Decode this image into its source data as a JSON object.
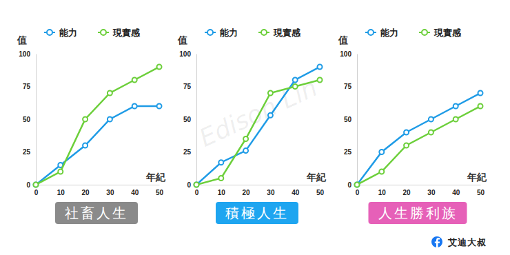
{
  "chart_data": [
    {
      "type": "line",
      "title": "社畜人生",
      "color": "#8a8a8a",
      "x_label": "年紀",
      "y_label": "值",
      "x": [
        0,
        10,
        20,
        30,
        40,
        50
      ],
      "xlim": [
        0,
        50
      ],
      "xticks": [
        0,
        10,
        20,
        30,
        40,
        50
      ],
      "ylim": [
        0,
        100
      ],
      "yticks": [
        0,
        25,
        50,
        75,
        100
      ],
      "grid": false,
      "legend": "top",
      "marker": "circle",
      "series": [
        {
          "name": "能力",
          "color": "#1e9be6",
          "values": [
            0,
            15,
            30,
            50,
            60,
            60
          ]
        },
        {
          "name": "現實感",
          "color": "#6ccf3a",
          "values": [
            0,
            10,
            50,
            70,
            80,
            90
          ]
        }
      ]
    },
    {
      "type": "line",
      "title": "積極人生",
      "color": "#1ea5f0",
      "x_label": "年紀",
      "y_label": "值",
      "x": [
        0,
        10,
        20,
        30,
        40,
        50
      ],
      "xlim": [
        0,
        50
      ],
      "xticks": [
        0,
        10,
        20,
        30,
        40,
        50
      ],
      "ylim": [
        0,
        100
      ],
      "yticks": [
        0,
        25,
        50,
        75,
        100
      ],
      "grid": false,
      "legend": "top",
      "marker": "circle",
      "series": [
        {
          "name": "能力",
          "color": "#1e9be6",
          "values": [
            0,
            17,
            26,
            53,
            80,
            90
          ]
        },
        {
          "name": "現實感",
          "color": "#6ccf3a",
          "values": [
            0,
            5,
            35,
            70,
            75,
            80
          ]
        }
      ]
    },
    {
      "type": "line",
      "title": "人生勝利族",
      "color": "#e660b8",
      "x_label": "年紀",
      "y_label": "值",
      "x": [
        0,
        10,
        20,
        30,
        40,
        50
      ],
      "xlim": [
        0,
        50
      ],
      "xticks": [
        0,
        10,
        20,
        30,
        40,
        50
      ],
      "ylim": [
        0,
        100
      ],
      "yticks": [
        0,
        25,
        50,
        75,
        100
      ],
      "grid": false,
      "legend": "top",
      "marker": "circle",
      "series": [
        {
          "name": "能力",
          "color": "#1e9be6",
          "values": [
            0,
            25,
            40,
            50,
            60,
            70
          ]
        },
        {
          "name": "現實感",
          "color": "#6ccf3a",
          "values": [
            0,
            10,
            30,
            40,
            50,
            60
          ]
        }
      ]
    }
  ],
  "watermark": "Edison Lin",
  "credit": "艾迪大叔"
}
